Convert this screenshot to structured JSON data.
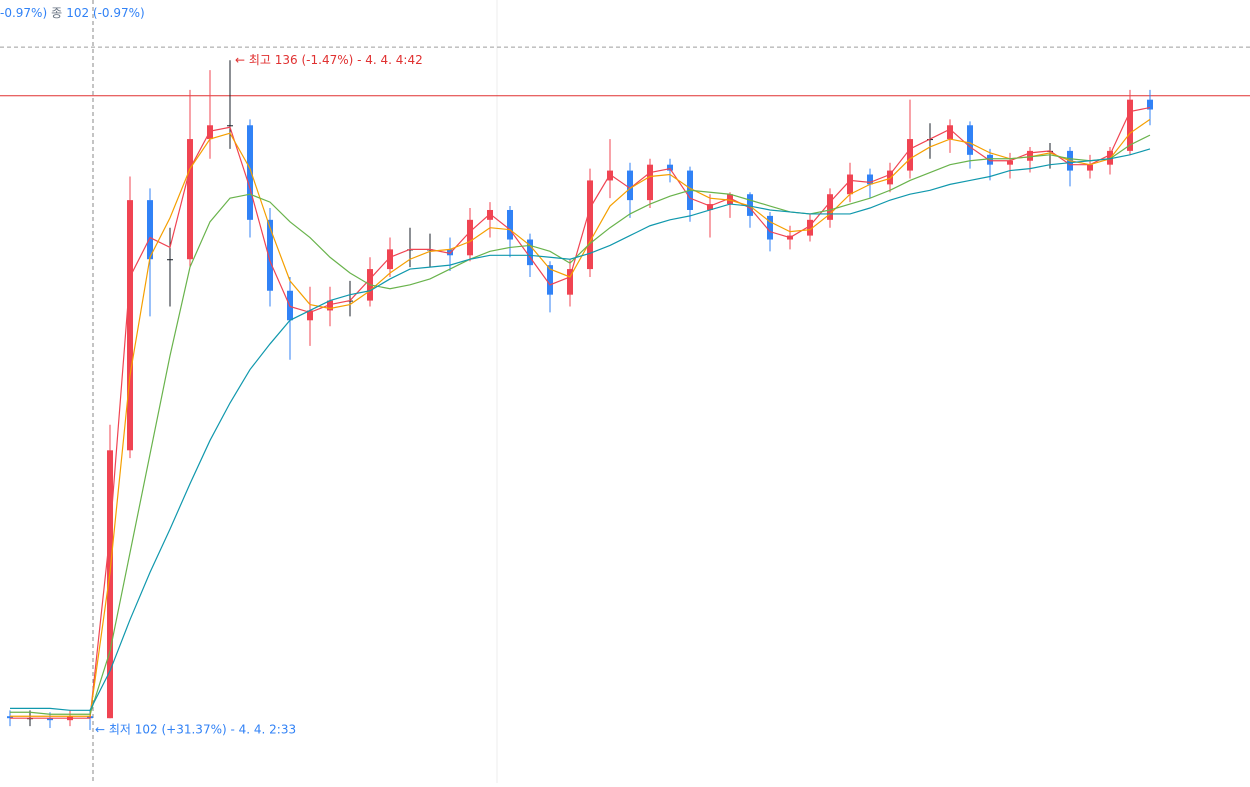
{
  "chart_data": {
    "type": "candlestick",
    "header": [
      "-0.97%)",
      "종",
      "102 (-0.97%)"
    ],
    "header_colors": [
      "#3182f6",
      "#6b7684",
      "#3182f6"
    ],
    "ylim": [
      99.31,
      139.06
    ],
    "up_color": "#f04452",
    "down_color": "#3182f6",
    "flat_color": "#191f28",
    "open": [
      102.7,
      102.6,
      102.6,
      102.5,
      102.7,
      102.6,
      116.2,
      128.9,
      125.9,
      125.9,
      132.0,
      132.7,
      132.7,
      127.9,
      124.3,
      122.8,
      123.3,
      123.8,
      123.8,
      125.4,
      126.4,
      126.4,
      126.4,
      126.1,
      127.9,
      128.4,
      126.9,
      125.6,
      124.1,
      125.4,
      129.9,
      130.4,
      128.9,
      130.7,
      130.4,
      128.4,
      128.7,
      129.2,
      128.1,
      126.9,
      127.1,
      127.9,
      129.2,
      130.2,
      129.7,
      130.4,
      132.0,
      132.0,
      132.7,
      131.2,
      130.7,
      130.9,
      131.4,
      131.4,
      130.4,
      130.7,
      131.4,
      134.0
    ],
    "high": [
      103.0,
      103.0,
      102.9,
      103.0,
      103.0,
      117.5,
      130.1,
      129.5,
      127.5,
      134.5,
      135.5,
      136.0,
      133.0,
      128.5,
      125.0,
      124.5,
      124.5,
      124.8,
      126.0,
      127.0,
      127.5,
      127.2,
      127.0,
      128.5,
      128.8,
      128.6,
      127.2,
      125.8,
      125.9,
      130.5,
      132.0,
      130.8,
      131.0,
      131.0,
      130.6,
      129.2,
      129.3,
      129.3,
      128.3,
      127.6,
      128.2,
      129.5,
      130.8,
      130.5,
      130.8,
      134.0,
      132.8,
      133.0,
      132.9,
      131.5,
      131.3,
      131.6,
      131.8,
      131.6,
      131.2,
      131.6,
      134.5,
      134.5
    ],
    "low": [
      102.2,
      102.2,
      102.1,
      102.2,
      102.0,
      102.6,
      115.8,
      123.0,
      123.5,
      125.5,
      131.0,
      131.5,
      127.0,
      123.5,
      120.8,
      121.5,
      122.5,
      123.0,
      123.5,
      125.0,
      125.5,
      125.5,
      125.3,
      125.8,
      127.0,
      126.0,
      125.0,
      123.2,
      123.5,
      125.0,
      129.0,
      128.0,
      128.5,
      129.8,
      127.8,
      127.0,
      128.0,
      127.5,
      126.3,
      126.4,
      126.8,
      127.5,
      128.8,
      129.0,
      129.3,
      130.0,
      131.0,
      131.3,
      130.5,
      129.9,
      130.0,
      130.3,
      130.5,
      129.6,
      130.0,
      130.2,
      131.2,
      132.7
    ],
    "close": [
      102.6,
      102.6,
      102.5,
      102.7,
      102.6,
      116.2,
      128.9,
      125.9,
      125.9,
      132.0,
      132.7,
      132.7,
      127.9,
      124.3,
      122.8,
      123.3,
      123.8,
      123.8,
      125.4,
      126.4,
      126.4,
      126.4,
      126.1,
      127.9,
      128.4,
      126.9,
      125.6,
      124.1,
      125.4,
      129.9,
      130.4,
      128.9,
      130.7,
      130.4,
      128.4,
      128.7,
      129.2,
      128.1,
      126.9,
      127.1,
      127.9,
      129.2,
      130.2,
      129.7,
      130.4,
      132.0,
      132.0,
      132.7,
      131.2,
      130.7,
      130.9,
      131.4,
      131.4,
      130.4,
      130.7,
      131.4,
      134.0,
      133.5
    ],
    "series": [
      {
        "color": "#f04452",
        "values": [
          102.6,
          102.6,
          102.6,
          102.6,
          102.6,
          112.0,
          125.0,
          127.0,
          126.5,
          130.5,
          132.4,
          132.6,
          129.5,
          125.8,
          123.5,
          123.2,
          123.6,
          123.8,
          124.9,
          126.0,
          126.4,
          126.4,
          126.2,
          127.3,
          128.2,
          127.4,
          126.0,
          124.6,
          125.0,
          128.5,
          130.2,
          129.5,
          130.3,
          130.5,
          129.0,
          128.6,
          129.0,
          128.5,
          127.3,
          127.0,
          127.6,
          128.8,
          129.9,
          129.8,
          130.2,
          131.5,
          132.0,
          132.5,
          131.6,
          130.9,
          130.9,
          131.3,
          131.4,
          130.7,
          130.7,
          131.2,
          133.4,
          133.6
        ]
      },
      {
        "color": "#f59f00",
        "values": [
          102.7,
          102.7,
          102.7,
          102.7,
          102.7,
          110.0,
          120.0,
          126.0,
          128.0,
          130.5,
          132.0,
          132.3,
          130.5,
          127.5,
          124.8,
          123.6,
          123.4,
          123.6,
          124.3,
          125.2,
          125.9,
          126.3,
          126.4,
          126.8,
          127.5,
          127.4,
          126.6,
          125.4,
          125.0,
          126.8,
          128.6,
          129.5,
          130.1,
          130.2,
          129.5,
          129.0,
          128.9,
          128.6,
          127.8,
          127.3,
          127.4,
          128.2,
          129.2,
          129.7,
          130.0,
          131.0,
          131.6,
          132.0,
          131.8,
          131.3,
          131.0,
          131.1,
          131.3,
          130.9,
          130.7,
          131.0,
          132.3,
          133.0
        ]
      },
      {
        "color": "#69b34c",
        "values": [
          102.9,
          102.9,
          102.8,
          102.8,
          102.8,
          106.0,
          111.0,
          116.0,
          121.0,
          125.5,
          127.8,
          129.0,
          129.2,
          128.8,
          127.8,
          127.0,
          126.0,
          125.2,
          124.6,
          124.4,
          124.6,
          124.9,
          125.4,
          125.9,
          126.3,
          126.5,
          126.6,
          126.3,
          125.7,
          126.7,
          127.5,
          128.2,
          128.7,
          129.1,
          129.4,
          129.3,
          129.2,
          128.9,
          128.6,
          128.3,
          128.2,
          128.4,
          128.7,
          129.0,
          129.4,
          129.9,
          130.3,
          130.7,
          130.9,
          131.0,
          131.0,
          131.1,
          131.2,
          131.0,
          130.9,
          131.0,
          131.7,
          132.2
        ]
      },
      {
        "color": "#1098ad",
        "values": [
          103.1,
          103.1,
          103.1,
          103.0,
          103.0,
          105.0,
          107.6,
          110.0,
          112.2,
          114.5,
          116.7,
          118.6,
          120.3,
          121.6,
          122.8,
          123.3,
          123.8,
          124.1,
          124.3,
          124.9,
          125.4,
          125.5,
          125.6,
          125.9,
          126.1,
          126.1,
          126.1,
          126.0,
          125.9,
          126.2,
          126.6,
          127.1,
          127.6,
          127.9,
          128.1,
          128.4,
          128.7,
          128.6,
          128.4,
          128.3,
          128.2,
          128.2,
          128.2,
          128.5,
          128.9,
          129.2,
          129.4,
          129.7,
          129.9,
          130.1,
          130.4,
          130.5,
          130.7,
          130.8,
          130.9,
          131.0,
          131.2,
          131.5
        ]
      }
    ],
    "reference_lines": [
      {
        "value": 134.2,
        "color": "#e03131",
        "style": "solid"
      },
      {
        "value": 136.67,
        "color": "#9e9e9e",
        "style": "dashed"
      }
    ],
    "annotations": [
      {
        "text": "← 최고 136 (-1.47%) - 4. 4. 4:42",
        "index": 11,
        "at": "high",
        "color": "#e03131"
      },
      {
        "text": "← 최저 102 (+31.37%) - 4. 4. 2:33",
        "index": 4,
        "at": "low",
        "color": "#3182f6"
      }
    ]
  }
}
